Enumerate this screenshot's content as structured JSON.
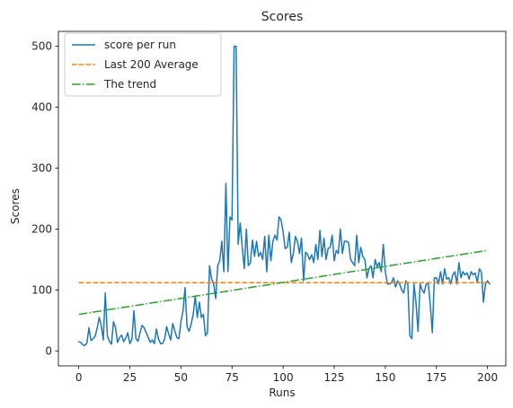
{
  "chart_data": {
    "type": "line",
    "title": "Scores",
    "xlabel": "Runs",
    "ylabel": "Scores",
    "xlim": [
      -9.95,
      208.95
    ],
    "ylim": [
      -24.5,
      524.5
    ],
    "xticks": [
      0,
      25,
      50,
      75,
      100,
      125,
      150,
      175,
      200
    ],
    "yticks": [
      0,
      100,
      200,
      300,
      400,
      500
    ],
    "legend_position": "top-left",
    "grid": false,
    "series": [
      {
        "name": "score per run",
        "style": "solid",
        "color": "#1f77b4",
        "values": [
          15,
          14,
          10,
          9,
          13,
          38,
          17,
          20,
          24,
          37,
          55,
          42,
          18,
          95,
          25,
          16,
          11,
          48,
          38,
          14,
          22,
          26,
          15,
          21,
          30,
          12,
          19,
          66,
          20,
          16,
          30,
          42,
          38,
          30,
          22,
          14,
          18,
          12,
          36,
          20,
          12,
          12,
          19,
          40,
          28,
          18,
          45,
          33,
          22,
          20,
          48,
          65,
          104,
          40,
          32,
          44,
          60,
          90,
          55,
          80,
          55,
          60,
          25,
          30,
          140,
          118,
          110,
          86,
          140,
          148,
          180,
          130,
          275,
          130,
          220,
          215,
          500,
          500,
          175,
          210,
          170,
          135,
          200,
          140,
          145,
          182,
          155,
          180,
          155,
          162,
          150,
          188,
          130,
          190,
          148,
          180,
          190,
          182,
          220,
          215,
          195,
          168,
          170,
          195,
          145,
          160,
          188,
          180,
          160,
          185,
          115,
          162,
          158,
          150,
          158,
          145,
          175,
          150,
          198,
          155,
          185,
          150,
          168,
          170,
          190,
          148,
          165,
          160,
          200,
          160,
          180,
          180,
          178,
          150,
          145,
          140,
          190,
          145,
          170,
          155,
          150,
          120,
          135,
          140,
          120,
          150,
          138,
          145,
          130,
          175,
          130,
          110,
          110,
          112,
          120,
          105,
          115,
          110,
          100,
          95,
          115,
          110,
          25,
          20,
          110,
          80,
          32,
          110,
          100,
          95,
          110,
          112,
          75,
          30,
          120,
          120,
          110,
          130,
          110,
          135,
          118,
          120,
          110,
          125,
          130,
          110,
          145,
          120,
          130,
          125,
          128,
          118,
          130,
          125,
          128,
          112,
          135,
          130,
          80,
          110,
          115,
          110
        ]
      },
      {
        "name": "Last 200 Average",
        "style": "dashed",
        "color": "#ff7f0e",
        "x": [
          0,
          200
        ],
        "y": [
          112,
          112
        ]
      },
      {
        "name": "The trend",
        "style": "dashdot",
        "color": "#2ca02c",
        "x": [
          0,
          200
        ],
        "y": [
          60,
          165
        ]
      }
    ]
  }
}
